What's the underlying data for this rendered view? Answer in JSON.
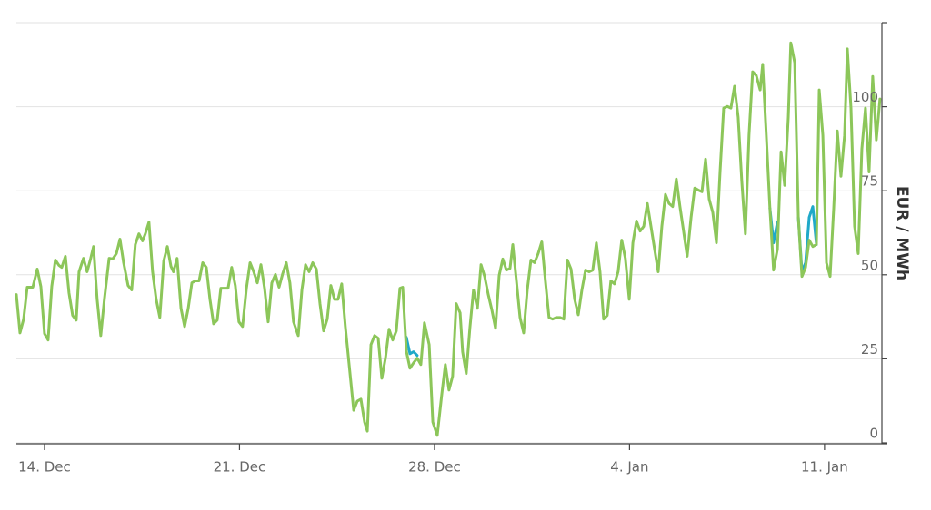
{
  "chart_data": {
    "type": "line",
    "y_axis_label": "EUR / MWh",
    "xlim": [
      12.99,
      44.06
    ],
    "ylim": [
      0,
      125
    ],
    "xticks": [
      {
        "value": 14,
        "label": "14. Dec"
      },
      {
        "value": 21,
        "label": "21. Dec"
      },
      {
        "value": 28,
        "label": "28. Dec"
      },
      {
        "value": 35,
        "label": "4. Jan"
      },
      {
        "value": 42,
        "label": "11. Jan"
      }
    ],
    "yticks": [
      0,
      25,
      50,
      75,
      100
    ],
    "grid": true,
    "series": [
      {
        "color": "#1fa9c9",
        "x": [
          26.99,
          27.12,
          27.25,
          27.38
        ],
        "values": [
          31.4,
          26.5,
          27.1,
          26.0
        ]
      },
      {
        "color": "#1fa9c9",
        "x": [
          40.04,
          40.17,
          40.31
        ],
        "values": [
          69.8,
          59.5,
          65.7
        ]
      },
      {
        "color": "#1fa9c9",
        "x": [
          41.06,
          41.19,
          41.32,
          41.45,
          41.58,
          41.71
        ],
        "values": [
          67.1,
          50.9,
          53.6,
          67.1,
          70.3,
          59.0
        ]
      },
      {
        "color": "#8cc65a",
        "x": [
          12.99,
          13.12,
          13.25,
          13.38,
          13.58,
          13.74,
          13.87,
          14.0,
          14.13,
          14.26,
          14.39,
          14.52,
          14.62,
          14.75,
          14.88,
          15.01,
          15.14,
          15.24,
          15.4,
          15.53,
          15.66,
          15.76,
          15.89,
          16.02,
          16.15,
          16.32,
          16.45,
          16.58,
          16.71,
          16.84,
          17.0,
          17.13,
          17.26,
          17.39,
          17.52,
          17.62,
          17.75,
          17.88,
          18.01,
          18.14,
          18.28,
          18.41,
          18.54,
          18.63,
          18.76,
          18.9,
          19.03,
          19.16,
          19.29,
          19.42,
          19.55,
          19.68,
          19.81,
          19.94,
          20.07,
          20.2,
          20.33,
          20.46,
          20.59,
          20.72,
          20.85,
          20.98,
          21.11,
          21.25,
          21.38,
          21.51,
          21.64,
          21.77,
          21.9,
          22.03,
          22.16,
          22.29,
          22.42,
          22.55,
          22.68,
          22.81,
          22.94,
          23.11,
          23.24,
          23.37,
          23.5,
          23.63,
          23.76,
          23.89,
          24.02,
          24.15,
          24.28,
          24.41,
          24.54,
          24.67,
          24.8,
          24.93,
          25.1,
          25.23,
          25.36,
          25.49,
          25.59,
          25.72,
          25.85,
          25.98,
          26.11,
          26.24,
          26.37,
          26.5,
          26.63,
          26.76,
          26.86,
          26.99,
          27.12,
          27.25,
          27.38,
          27.51,
          27.64,
          27.81,
          27.94,
          28.1,
          28.26,
          28.39,
          28.52,
          28.65,
          28.78,
          28.92,
          29.01,
          29.14,
          29.27,
          29.4,
          29.54,
          29.67,
          29.8,
          29.93,
          30.06,
          30.19,
          30.32,
          30.45,
          30.58,
          30.71,
          30.81,
          30.94,
          31.07,
          31.2,
          31.33,
          31.46,
          31.59,
          31.72,
          31.85,
          31.98,
          32.11,
          32.24,
          32.37,
          32.51,
          32.64,
          32.77,
          32.9,
          33.03,
          33.16,
          33.29,
          33.42,
          33.55,
          33.68,
          33.81,
          33.94,
          34.07,
          34.2,
          34.33,
          34.46,
          34.59,
          34.72,
          34.85,
          34.99,
          35.12,
          35.25,
          35.38,
          35.51,
          35.64,
          35.77,
          35.9,
          36.03,
          36.16,
          36.29,
          36.42,
          36.55,
          36.68,
          36.81,
          36.94,
          37.07,
          37.21,
          37.34,
          37.47,
          37.6,
          37.73,
          37.86,
          37.99,
          38.12,
          38.25,
          38.38,
          38.51,
          38.64,
          38.77,
          38.9,
          39.03,
          39.16,
          39.29,
          39.42,
          39.55,
          39.69,
          39.78,
          39.91,
          40.04,
          40.17,
          40.31,
          40.44,
          40.57,
          40.7,
          40.79,
          40.93,
          41.06,
          41.19,
          41.32,
          41.45,
          41.58,
          41.71,
          41.81,
          41.94,
          42.07,
          42.2,
          42.33,
          42.46,
          42.59,
          42.72,
          42.82,
          42.95,
          43.08,
          43.21,
          43.34,
          43.47,
          43.6,
          43.73,
          43.86,
          43.99
        ],
        "values": [
          44.1,
          32.7,
          36.8,
          46.3,
          46.3,
          51.7,
          46.5,
          32.5,
          30.6,
          46.5,
          54.4,
          52.8,
          52.2,
          55.5,
          44.6,
          37.9,
          36.5,
          50.9,
          54.9,
          50.9,
          54.9,
          58.4,
          42.7,
          31.9,
          42.7,
          54.9,
          54.7,
          56.3,
          60.6,
          53.6,
          46.8,
          45.5,
          59.0,
          62.2,
          60.1,
          62.2,
          65.7,
          50.9,
          42.7,
          37.3,
          54.1,
          58.4,
          52.5,
          50.9,
          54.9,
          40.0,
          34.6,
          40.0,
          47.6,
          48.2,
          48.2,
          53.6,
          52.2,
          42.7,
          35.4,
          36.5,
          46.0,
          46.0,
          46.0,
          52.2,
          46.8,
          36.0,
          34.6,
          46.0,
          53.6,
          50.9,
          47.6,
          53.0,
          46.0,
          36.0,
          47.6,
          50.1,
          46.3,
          50.3,
          53.6,
          47.6,
          36.0,
          31.9,
          45.5,
          53.0,
          50.9,
          53.6,
          51.7,
          41.4,
          33.3,
          36.8,
          46.8,
          42.7,
          42.7,
          47.3,
          34.6,
          23.8,
          9.7,
          12.4,
          13.0,
          6.2,
          3.5,
          29.2,
          31.9,
          31.1,
          19.2,
          25.2,
          33.8,
          30.6,
          33.3,
          46.0,
          46.3,
          27.3,
          22.2,
          23.8,
          25.2,
          23.3,
          35.7,
          29.2,
          6.2,
          2.2,
          14.3,
          23.3,
          15.7,
          19.8,
          41.4,
          38.7,
          27.1,
          20.6,
          34.1,
          45.5,
          40.0,
          53.0,
          49.5,
          44.1,
          39.5,
          34.1,
          49.8,
          54.7,
          51.4,
          51.9,
          59.0,
          48.2,
          37.3,
          32.7,
          45.5,
          54.4,
          53.6,
          56.3,
          59.8,
          48.2,
          37.3,
          36.8,
          37.3,
          37.3,
          36.8,
          54.4,
          51.7,
          42.7,
          38.1,
          45.5,
          51.4,
          50.9,
          51.4,
          59.5,
          50.9,
          36.8,
          37.9,
          48.2,
          47.3,
          50.9,
          60.3,
          54.9,
          42.7,
          59.5,
          66.0,
          63.0,
          64.4,
          71.2,
          64.4,
          57.6,
          50.9,
          64.4,
          73.9,
          71.2,
          70.3,
          78.5,
          70.3,
          63.0,
          55.5,
          67.1,
          75.8,
          75.2,
          74.7,
          84.4,
          72.5,
          68.5,
          59.5,
          80.6,
          99.6,
          100.1,
          99.6,
          106.1,
          96.9,
          77.9,
          62.2,
          91.5,
          110.4,
          109.3,
          105.0,
          112.6,
          91.5,
          69.8,
          51.4,
          57.6,
          86.6,
          76.6,
          96.9,
          119.0,
          113.1,
          67.1,
          49.5,
          52.2,
          60.3,
          58.4,
          59.0,
          105.0,
          91.5,
          53.6,
          49.5,
          69.8,
          92.8,
          79.3,
          91.5,
          117.2,
          99.6,
          64.4,
          56.3,
          87.4,
          99.6,
          80.6,
          109.0,
          90.1,
          102.3
        ]
      }
    ]
  }
}
